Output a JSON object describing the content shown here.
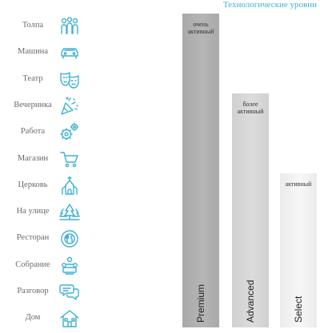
{
  "header": {
    "title": "Технологические уровни"
  },
  "colors": {
    "accent": "#3fb0d4",
    "icon_stroke": "#3fb0d4",
    "label_text": "#6b6b6b"
  },
  "rows": [
    {
      "label": "Толпа",
      "icon": "crowd-icon"
    },
    {
      "label": "Машина",
      "icon": "car-icon"
    },
    {
      "label": "Театр",
      "icon": "theater-masks-icon"
    },
    {
      "label": "Вечеринка",
      "icon": "party-popper-icon"
    },
    {
      "label": "Работа",
      "icon": "gears-icon"
    },
    {
      "label": "Магазин",
      "icon": "shopping-cart-icon"
    },
    {
      "label": "Церковь",
      "icon": "church-icon"
    },
    {
      "label": "На улице",
      "icon": "trees-icon"
    },
    {
      "label": "Ресторан",
      "icon": "plate-cutlery-icon"
    },
    {
      "label": "Собрание",
      "icon": "meeting-icon"
    },
    {
      "label": "Разговор",
      "icon": "speech-bubbles-icon"
    },
    {
      "label": "Дом",
      "icon": "house-icon"
    }
  ],
  "chart_data": {
    "type": "bar",
    "title": "Технологические уровни",
    "categories": [
      "Premium",
      "Advanced",
      "Select"
    ],
    "activity_labels": [
      "очень активный",
      "более активный",
      "активный"
    ],
    "coverage_top_row": [
      1,
      4,
      7
    ],
    "row_count": 12,
    "colors": [
      "#a9a9a9",
      "#d0d0d0",
      "#ebebeb"
    ]
  }
}
